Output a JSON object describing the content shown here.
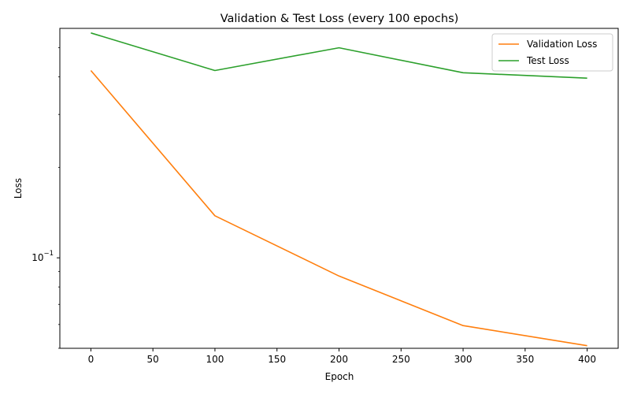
{
  "chart_data": {
    "type": "line",
    "title": "Validation & Test Loss (every 100 epochs)",
    "xlabel": "Epoch",
    "ylabel": "Loss",
    "x": [
      0,
      100,
      200,
      300,
      400
    ],
    "xticks": [
      "0",
      "50",
      "100",
      "150",
      "200",
      "250",
      "300",
      "350",
      "400"
    ],
    "xlim": [
      -25,
      425
    ],
    "yscale": "log",
    "ylim": [
      0.05,
      0.58
    ],
    "yticks": [
      {
        "value": 0.1,
        "base": "10",
        "exp": "−1"
      }
    ],
    "grid": false,
    "legend_position": "top-right",
    "series": [
      {
        "name": "Validation Loss",
        "color": "#ff7f0e",
        "values": [
          0.42,
          0.138,
          0.087,
          0.0595,
          0.051
        ]
      },
      {
        "name": "Test Loss",
        "color": "#2ca02c",
        "values": [
          0.56,
          0.42,
          0.5,
          0.413,
          0.396
        ]
      }
    ]
  }
}
